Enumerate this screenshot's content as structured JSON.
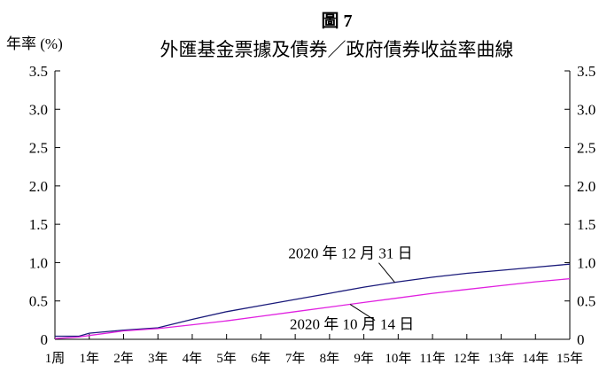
{
  "chart_data": {
    "type": "line",
    "figure_label": "圖 7",
    "title": "外匯基金票據及債券／政府債券收益率曲線",
    "ylabel": "年率 (%)",
    "xlabel": "",
    "ylim": [
      0,
      3.5
    ],
    "yticks": [
      "0",
      "0.5",
      "1.0",
      "1.5",
      "2.0",
      "2.5",
      "3.0",
      "3.5"
    ],
    "yticks_right": [
      "0",
      "0.5",
      "1.0",
      "1.5",
      "2.0",
      "2.5",
      "3.0",
      "3.5"
    ],
    "categories": [
      "1周",
      "1年",
      "2年",
      "3年",
      "4年",
      "5年",
      "6年",
      "7年",
      "8年",
      "9年",
      "10年",
      "11年",
      "12年",
      "13年",
      "14年",
      "15年"
    ],
    "grid": false,
    "legend": "none",
    "series": [
      {
        "name": "2020 年 12 月 31 日",
        "color": "#1a1a7a",
        "points": [
          [
            0,
            0.04
          ],
          [
            0.35,
            0.04
          ],
          [
            0.7,
            0.04
          ],
          [
            1,
            0.08
          ],
          [
            2,
            0.12
          ],
          [
            3,
            0.15
          ],
          [
            4,
            0.26
          ],
          [
            5,
            0.36
          ],
          [
            6,
            0.44
          ],
          [
            7,
            0.52
          ],
          [
            8,
            0.6
          ],
          [
            9,
            0.68
          ],
          [
            10,
            0.75
          ],
          [
            11,
            0.81
          ],
          [
            12,
            0.86
          ],
          [
            13,
            0.9
          ],
          [
            14,
            0.94
          ],
          [
            15,
            0.98
          ]
        ]
      },
      {
        "name": "2020 年 10 月 14 日",
        "color": "#e020e0",
        "points": [
          [
            0,
            0.01
          ],
          [
            0.35,
            0.02
          ],
          [
            0.7,
            0.03
          ],
          [
            1,
            0.05
          ],
          [
            2,
            0.11
          ],
          [
            3,
            0.14
          ],
          [
            4,
            0.19
          ],
          [
            5,
            0.24
          ],
          [
            6,
            0.3
          ],
          [
            7,
            0.36
          ],
          [
            8,
            0.42
          ],
          [
            9,
            0.48
          ],
          [
            10,
            0.54
          ],
          [
            11,
            0.6
          ],
          [
            12,
            0.65
          ],
          [
            13,
            0.7
          ],
          [
            14,
            0.75
          ],
          [
            15,
            0.79
          ]
        ]
      }
    ],
    "annotations": [
      {
        "text": "2020 年 12 月 31 日",
        "series": 0,
        "x": 9.9
      },
      {
        "text": "2020 年 10 月 14 日",
        "series": 1,
        "x": 8.6
      }
    ]
  }
}
